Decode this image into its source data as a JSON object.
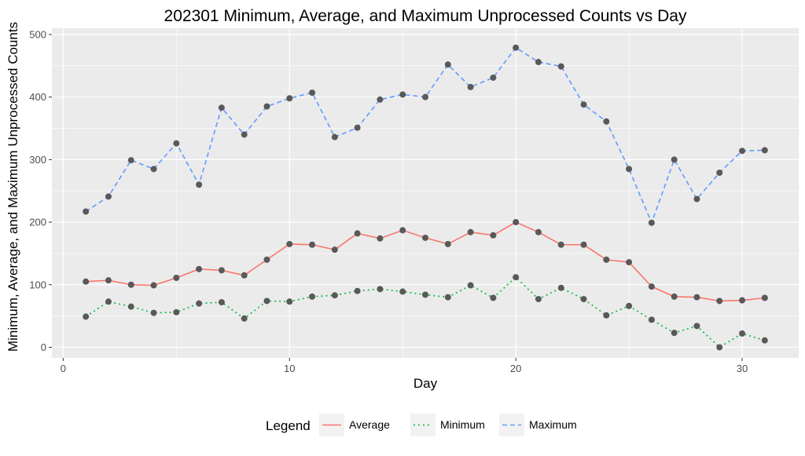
{
  "chart_data": {
    "type": "line",
    "title": "202301 Minimum, Average, and Maximum Unprocessed Counts vs Day",
    "xlabel": "Day",
    "ylabel": "Minimum, Average, and Maximum Unprocessed Counts",
    "xlim": [
      -0.5,
      32.5
    ],
    "ylim": [
      -17,
      510
    ],
    "x_ticks": [
      0,
      10,
      20,
      30
    ],
    "y_ticks": [
      0,
      100,
      200,
      300,
      400,
      500
    ],
    "grid": true,
    "legend": {
      "title": "Legend",
      "position": "bottom"
    },
    "x": [
      1,
      2,
      3,
      4,
      5,
      6,
      7,
      8,
      9,
      10,
      11,
      12,
      13,
      14,
      15,
      16,
      17,
      18,
      19,
      20,
      21,
      22,
      23,
      24,
      25,
      26,
      27,
      28,
      29,
      30,
      31
    ],
    "series": [
      {
        "name": "Average",
        "color": "#F8766D",
        "dash": "solid",
        "values": [
          105,
          107,
          100,
          99,
          111,
          125,
          123,
          115,
          140,
          165,
          164,
          156,
          182,
          174,
          187,
          175,
          165,
          184,
          179,
          200,
          184,
          164,
          164,
          140,
          136,
          97,
          81,
          80,
          74,
          75,
          79
        ]
      },
      {
        "name": "Minimum",
        "color": "#00BA38",
        "dash": "dotted",
        "values": [
          49,
          73,
          65,
          55,
          56,
          70,
          72,
          46,
          74,
          73,
          81,
          83,
          90,
          93,
          89,
          84,
          80,
          99,
          79,
          112,
          77,
          95,
          77,
          51,
          66,
          44,
          23,
          34,
          0,
          22,
          11
        ]
      },
      {
        "name": "Maximum",
        "color": "#619CFF",
        "dash": "dashed",
        "values": [
          217,
          241,
          299,
          285,
          326,
          260,
          383,
          340,
          385,
          398,
          407,
          336,
          351,
          396,
          404,
          400,
          452,
          416,
          431,
          479,
          456,
          449,
          388,
          361,
          285,
          199,
          300,
          237,
          279,
          314,
          315
        ]
      }
    ],
    "point_color": "#595959",
    "panel_color": "#EBEBEB"
  }
}
